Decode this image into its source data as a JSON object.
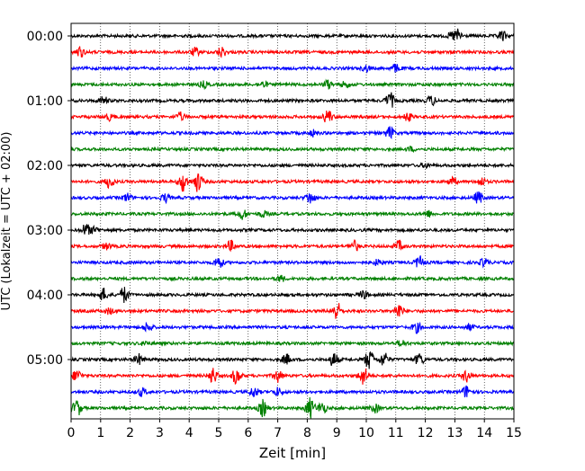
{
  "chart_data": {
    "type": "line",
    "title": "",
    "xlabel": "Zeit  [min]",
    "ylabel": "UTC (Lokalzeit = UTC + 02:00)",
    "xlim": [
      0,
      15
    ],
    "x_ticks": [
      "0",
      "1",
      "2",
      "3",
      "4",
      "5",
      "6",
      "7",
      "8",
      "9",
      "10",
      "11",
      "12",
      "13",
      "14",
      "15"
    ],
    "y_ticks": [
      "00:00",
      "01:00",
      "02:00",
      "03:00",
      "04:00",
      "05:00"
    ],
    "y_tick_rows": [
      0,
      4,
      8,
      12,
      16,
      20
    ],
    "grid": "vertical dotted",
    "row_interval_min": 15,
    "trace_colors": [
      "#000000",
      "#ff0000",
      "#0000ff",
      "#008000"
    ],
    "trace_count": 24,
    "events": [
      [
        [
          13.1,
          0.6
        ],
        [
          14.6,
          0.5
        ],
        [
          12.9,
          0.3
        ]
      ],
      [
        [
          0.3,
          0.5
        ],
        [
          4.2,
          0.4
        ],
        [
          5.1,
          0.5
        ]
      ],
      [
        [
          10.0,
          0.3
        ],
        [
          11.0,
          0.4
        ]
      ],
      [
        [
          4.5,
          0.3
        ],
        [
          6.5,
          0.3
        ],
        [
          8.7,
          0.4
        ],
        [
          9.3,
          0.3
        ]
      ],
      [
        [
          1.1,
          0.4
        ],
        [
          10.8,
          0.8
        ],
        [
          12.2,
          0.5
        ]
      ],
      [
        [
          1.3,
          0.3
        ],
        [
          3.7,
          0.4
        ],
        [
          8.7,
          0.7
        ],
        [
          11.4,
          0.4
        ]
      ],
      [
        [
          8.2,
          0.3
        ],
        [
          10.8,
          0.6
        ]
      ],
      [
        [
          11.5,
          0.2
        ]
      ],
      [
        [
          12.0,
          0.2
        ]
      ],
      [
        [
          1.3,
          0.6
        ],
        [
          3.8,
          1.0
        ],
        [
          4.3,
          1.0
        ],
        [
          12.9,
          0.4
        ],
        [
          13.9,
          0.4
        ]
      ],
      [
        [
          1.9,
          0.4
        ],
        [
          3.2,
          0.4
        ],
        [
          8.1,
          0.6
        ],
        [
          13.8,
          0.6
        ]
      ],
      [
        [
          5.8,
          0.5
        ],
        [
          6.5,
          0.3
        ],
        [
          12.1,
          0.3
        ]
      ],
      [
        [
          0.5,
          0.6
        ],
        [
          0.8,
          0.3
        ]
      ],
      [
        [
          1.2,
          0.3
        ],
        [
          5.4,
          0.5
        ],
        [
          9.6,
          0.5
        ],
        [
          11.1,
          0.5
        ]
      ],
      [
        [
          5.0,
          0.6
        ],
        [
          10.4,
          0.3
        ],
        [
          11.8,
          0.6
        ],
        [
          14.0,
          0.4
        ]
      ],
      [
        [
          7.1,
          0.3
        ]
      ],
      [
        [
          1.1,
          0.6
        ],
        [
          1.8,
          0.8
        ],
        [
          9.9,
          0.4
        ]
      ],
      [
        [
          9.0,
          0.9
        ],
        [
          11.1,
          0.7
        ],
        [
          1.3,
          0.3
        ]
      ],
      [
        [
          2.6,
          0.5
        ],
        [
          11.7,
          0.5
        ],
        [
          13.5,
          0.3
        ]
      ],
      [
        [
          2.5,
          0.2
        ],
        [
          11.2,
          0.3
        ]
      ],
      [
        [
          2.3,
          0.5
        ],
        [
          7.3,
          0.5
        ],
        [
          8.9,
          0.7
        ],
        [
          10.1,
          1.0
        ],
        [
          10.6,
          0.7
        ],
        [
          11.8,
          0.6
        ]
      ],
      [
        [
          0.2,
          0.6
        ],
        [
          4.8,
          0.8
        ],
        [
          5.6,
          0.8
        ],
        [
          7.0,
          0.6
        ],
        [
          9.9,
          0.9
        ],
        [
          13.4,
          0.6
        ]
      ],
      [
        [
          2.4,
          0.4
        ],
        [
          6.2,
          0.5
        ],
        [
          7.0,
          0.4
        ],
        [
          13.4,
          0.6
        ]
      ],
      [
        [
          0.2,
          0.8
        ],
        [
          6.5,
          0.8
        ],
        [
          8.1,
          1.0
        ],
        [
          8.5,
          0.6
        ],
        [
          10.3,
          0.4
        ]
      ]
    ]
  }
}
